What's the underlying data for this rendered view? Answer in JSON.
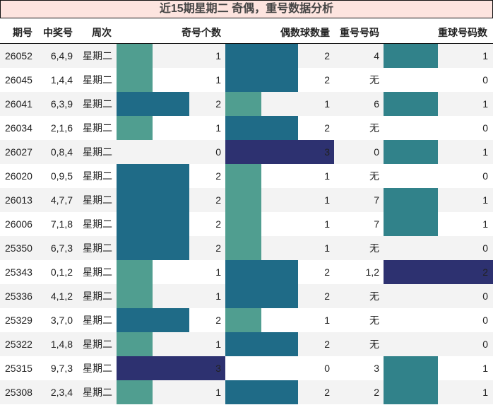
{
  "title": "近15期星期二 奇偶，重号数据分析",
  "headers": {
    "issue": "期号",
    "numbers": "中奖号",
    "weekday": "周次",
    "odd_count": "奇号个数",
    "even_count": "偶数球数量",
    "repeat_numbers": "重号号码",
    "repeat_count": "重球号码数"
  },
  "colors": {
    "title_bg": "#fde4df",
    "row_odd_bg": "#f3f3f3",
    "row_even_bg": "#ffffff",
    "level_1": "#509e90",
    "level_2": "#1f6b87",
    "level_3": "#2d3170",
    "repeat_level_1": "#31828a",
    "repeat_level_2": "#2d3170"
  },
  "rows": [
    {
      "issue": "26052",
      "numbers": "6,4,9",
      "weekday": "星期二",
      "odd": "1",
      "even": "2",
      "repeat": "4",
      "repeat_count": "1"
    },
    {
      "issue": "26045",
      "numbers": "1,4,4",
      "weekday": "星期二",
      "odd": "1",
      "even": "2",
      "repeat": "无",
      "repeat_count": "0"
    },
    {
      "issue": "26041",
      "numbers": "6,3,9",
      "weekday": "星期二",
      "odd": "2",
      "even": "1",
      "repeat": "6",
      "repeat_count": "1"
    },
    {
      "issue": "26034",
      "numbers": "2,1,6",
      "weekday": "星期二",
      "odd": "1",
      "even": "2",
      "repeat": "无",
      "repeat_count": "0"
    },
    {
      "issue": "26027",
      "numbers": "0,8,4",
      "weekday": "星期二",
      "odd": "0",
      "even": "3",
      "repeat": "0",
      "repeat_count": "1"
    },
    {
      "issue": "26020",
      "numbers": "0,9,5",
      "weekday": "星期二",
      "odd": "2",
      "even": "1",
      "repeat": "无",
      "repeat_count": "0"
    },
    {
      "issue": "26013",
      "numbers": "4,7,7",
      "weekday": "星期二",
      "odd": "2",
      "even": "1",
      "repeat": "7",
      "repeat_count": "1"
    },
    {
      "issue": "26006",
      "numbers": "7,1,8",
      "weekday": "星期二",
      "odd": "2",
      "even": "1",
      "repeat": "7",
      "repeat_count": "1"
    },
    {
      "issue": "25350",
      "numbers": "6,7,3",
      "weekday": "星期二",
      "odd": "2",
      "even": "1",
      "repeat": "无",
      "repeat_count": "0"
    },
    {
      "issue": "25343",
      "numbers": "0,1,2",
      "weekday": "星期二",
      "odd": "1",
      "even": "2",
      "repeat": "1,2",
      "repeat_count": "2"
    },
    {
      "issue": "25336",
      "numbers": "4,1,2",
      "weekday": "星期二",
      "odd": "1",
      "even": "2",
      "repeat": "无",
      "repeat_count": "0"
    },
    {
      "issue": "25329",
      "numbers": "3,7,0",
      "weekday": "星期二",
      "odd": "2",
      "even": "1",
      "repeat": "无",
      "repeat_count": "0"
    },
    {
      "issue": "25322",
      "numbers": "1,4,8",
      "weekday": "星期二",
      "odd": "1",
      "even": "2",
      "repeat": "无",
      "repeat_count": "0"
    },
    {
      "issue": "25315",
      "numbers": "9,7,3",
      "weekday": "星期二",
      "odd": "3",
      "even": "0",
      "repeat": "3",
      "repeat_count": "1"
    },
    {
      "issue": "25308",
      "numbers": "2,3,4",
      "weekday": "星期二",
      "odd": "1",
      "even": "2",
      "repeat": "2",
      "repeat_count": "1"
    }
  ]
}
